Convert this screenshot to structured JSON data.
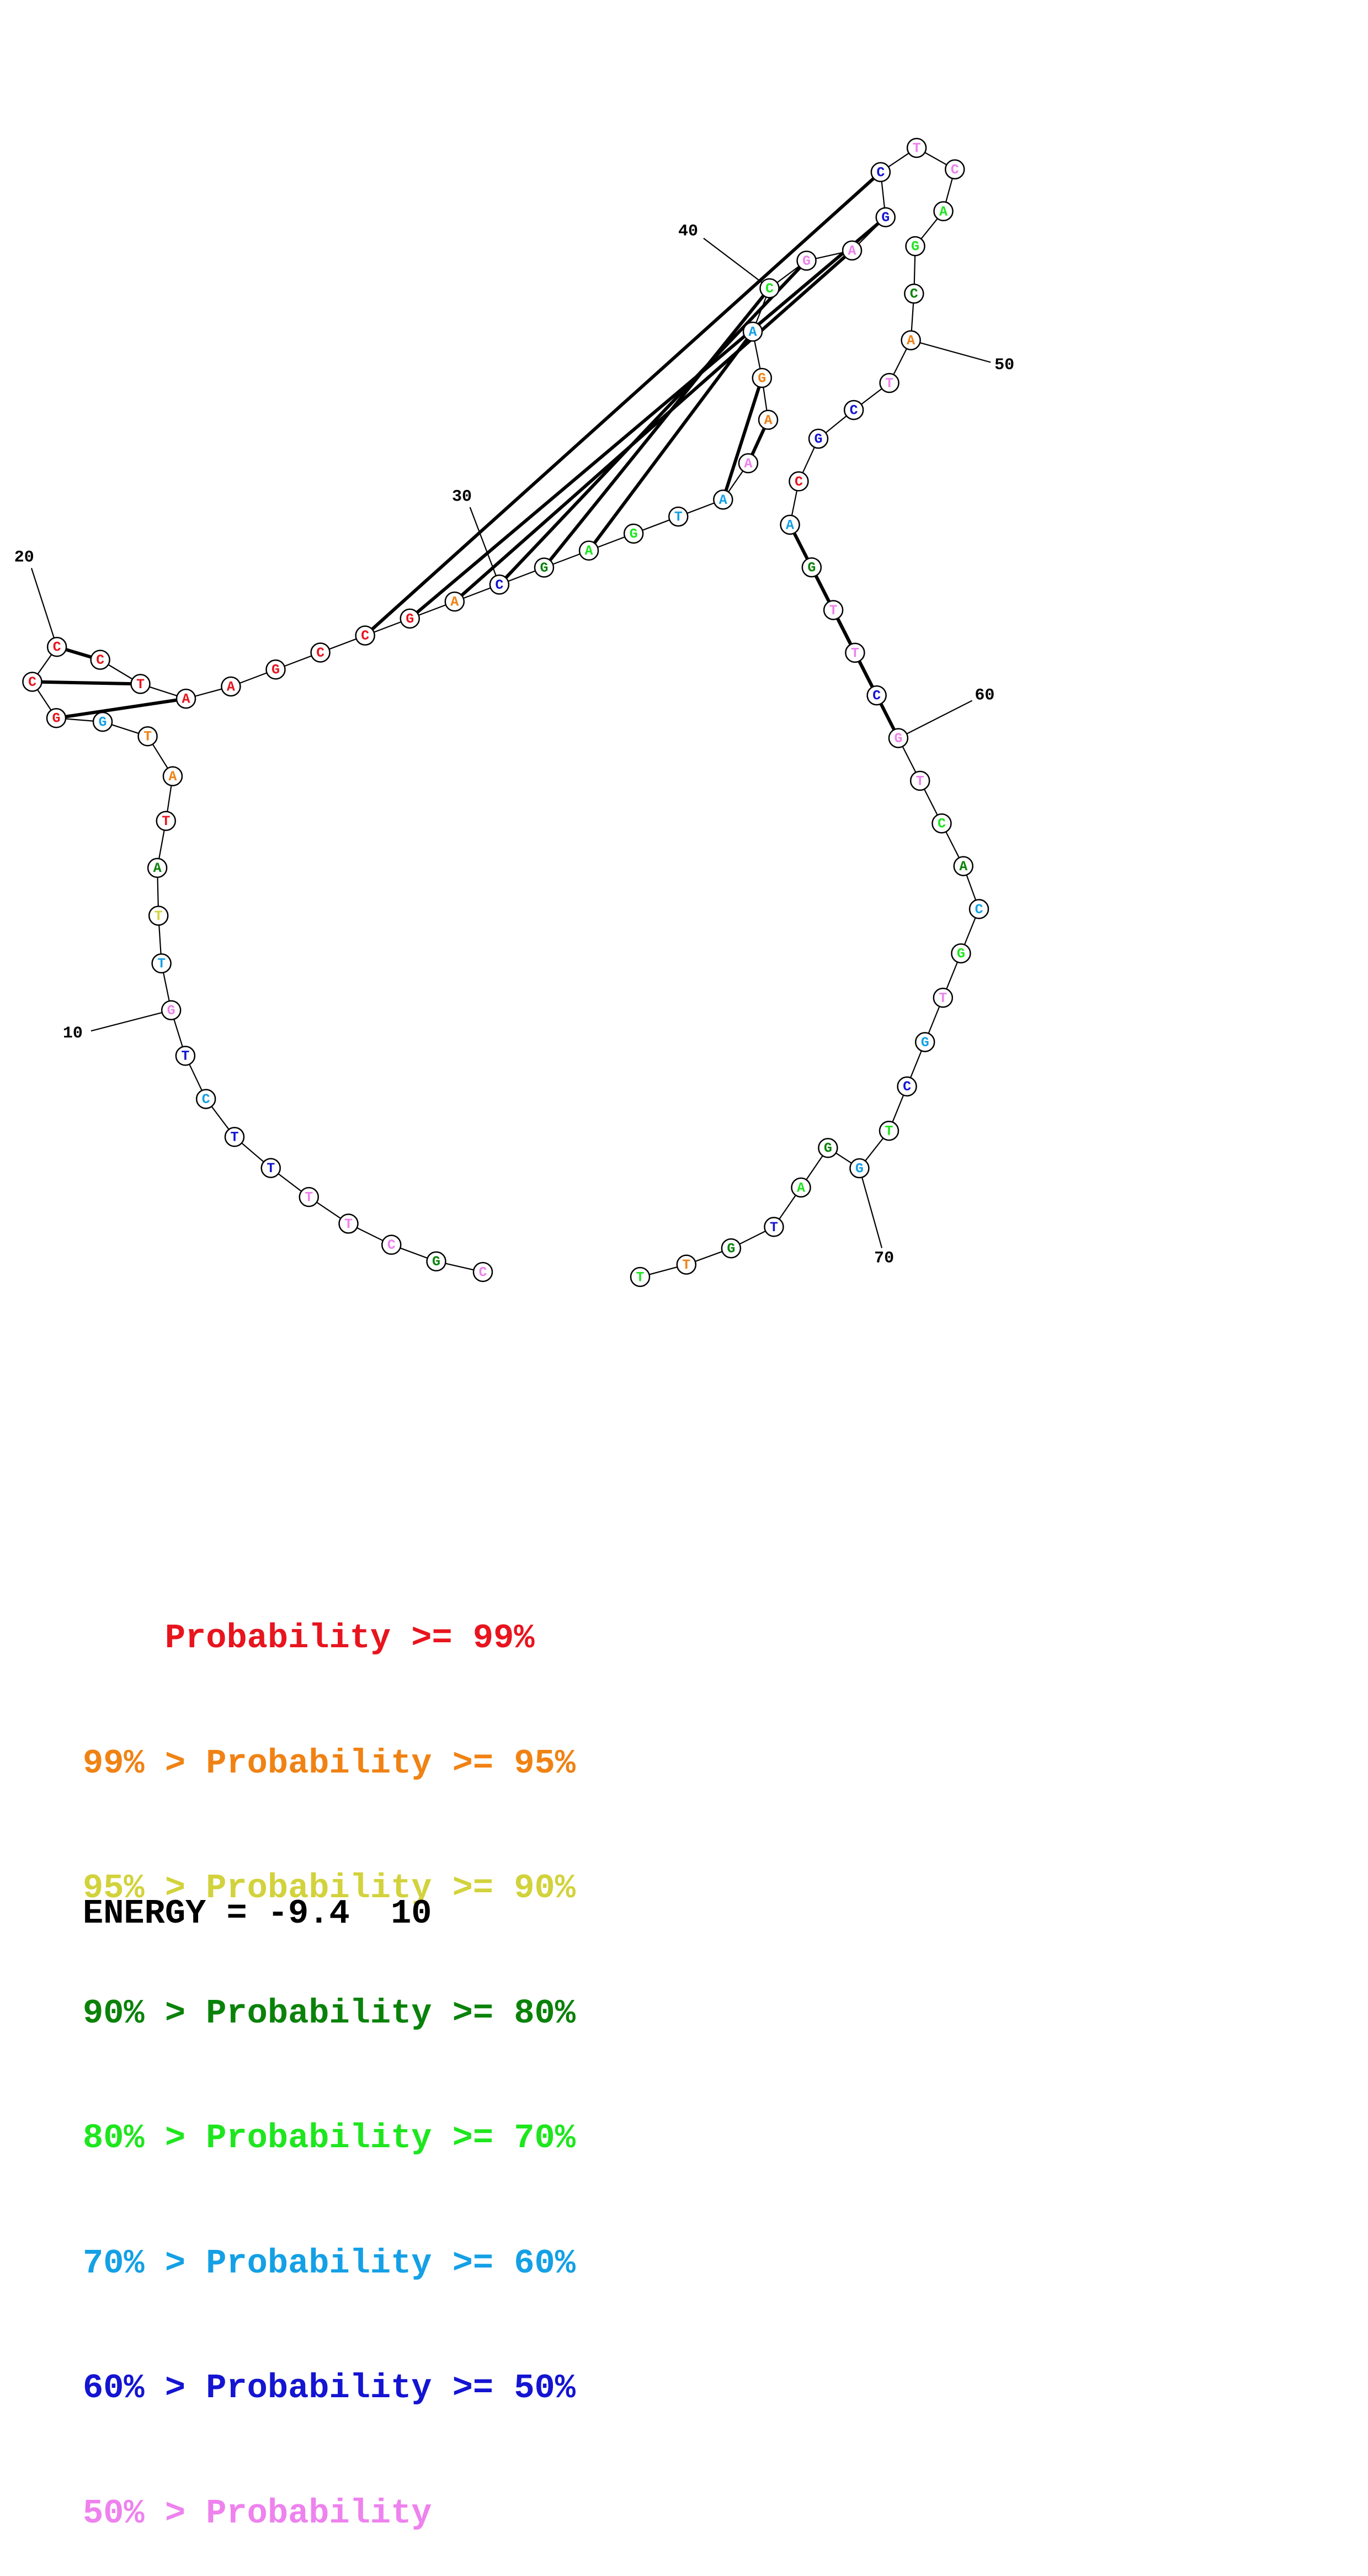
{
  "sequence": "CGCTTTTCTGTTATATGGCCCTAAGCCGACGAGTAAAGACGAGCTCAGCATCGCAGTTCGTCACGTGCTGGATGTT",
  "pairs": [
    [
      17,
      22
    ],
    [
      18,
      21
    ],
    [
      19,
      20
    ],
    [
      26,
      43
    ],
    [
      27,
      42
    ],
    [
      28,
      41
    ],
    [
      29,
      40
    ],
    [
      30,
      39
    ],
    [
      31,
      38
    ],
    [
      34,
      37
    ],
    [
      35,
      36
    ],
    [
      54,
      59
    ],
    [
      55,
      58
    ],
    [
      56,
      57
    ]
  ],
  "position_labels": [
    "10",
    "20",
    "30",
    "40",
    "50",
    "60",
    "70"
  ],
  "probability_colors": [
    "#e8141e",
    "#f08214",
    "#d2d23c",
    "#0a820a",
    "#1ee61e",
    "#14a0e6",
    "#1414d2",
    "#ee82ee"
  ],
  "nucleotide_class": [
    7,
    3,
    7,
    7,
    7,
    6,
    6,
    5,
    6,
    7,
    5,
    2,
    3,
    0,
    1,
    1,
    5,
    0,
    0,
    0,
    0,
    0,
    0,
    0,
    0,
    0,
    0,
    0,
    1,
    6,
    3,
    4,
    4,
    5,
    5,
    7,
    1,
    1,
    5,
    4,
    7,
    7,
    6,
    6,
    7,
    7,
    4,
    4,
    3,
    1,
    7,
    6,
    6,
    0,
    5,
    3,
    7,
    7,
    6,
    7,
    7,
    4,
    3,
    5,
    4,
    7,
    5,
    6,
    4,
    5,
    3,
    4,
    6,
    3,
    1,
    4
  ],
  "legend": [
    {
      "prefix": "    ",
      "text": "Probability >= 99%"
    },
    {
      "prefix": "99% > ",
      "text": "Probability >= 95%"
    },
    {
      "prefix": "95% > ",
      "text": "Probability >= 90%"
    },
    {
      "prefix": "90% > ",
      "text": "Probability >= 80%"
    },
    {
      "prefix": "80% > ",
      "text": "Probability >= 70%"
    },
    {
      "prefix": "70% > ",
      "text": "Probability >= 60%"
    },
    {
      "prefix": "60% > ",
      "text": "Probability >= 50%"
    },
    {
      "prefix": "50% > ",
      "text": "Probability"
    }
  ],
  "energy_text": "ENERGY = -9.4  10"
}
